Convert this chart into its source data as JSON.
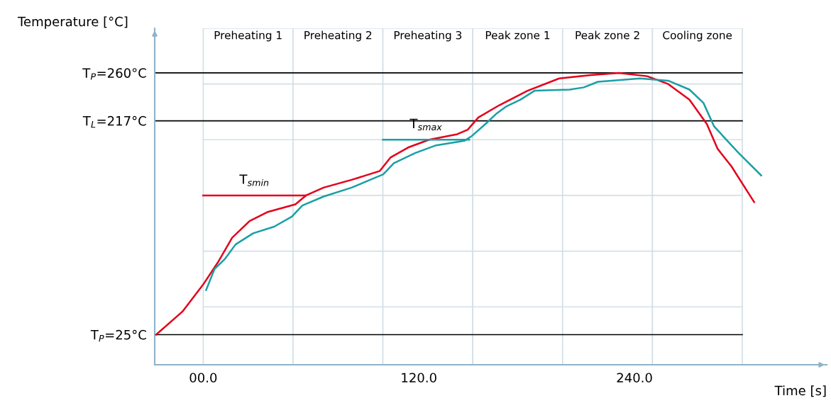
{
  "chart_data": {
    "type": "line",
    "xlabel": "Time [s]",
    "ylabel": "Temperature [°C]",
    "xlim": [
      -27,
      347
    ],
    "ylim": [
      -2,
      300
    ],
    "xticks": [
      {
        "value": 0,
        "label": "00.0"
      },
      {
        "value": 120,
        "label": "120.0"
      },
      {
        "value": 240,
        "label": "240.0"
      }
    ],
    "yticks": [
      {
        "value": 25,
        "label": "T$_{P}$=25°C"
      },
      {
        "value": 217,
        "label": "T$_{L}$=217°C"
      },
      {
        "value": 260,
        "label": "T$_{P}$=260°C"
      }
    ],
    "grid": false,
    "legend": false,
    "series": [
      {
        "color": "#e3001b",
        "x": [
          -26.2,
          -11.4,
          0.4,
          8.2,
          16.1,
          25.8,
          35.6,
          51.3,
          57.2,
          67.0,
          82.6,
          98.3,
          104.2,
          114.0,
          125.7,
          141.4,
          147.2,
          153.1,
          164.8,
          180.5,
          198.1,
          215.7,
          231.4,
          247.1,
          258.8,
          270.6,
          280.3,
          286.2,
          294.0,
          306.6
        ],
        "values": [
          25,
          46,
          71,
          90,
          112,
          127,
          135,
          142,
          150,
          157,
          164,
          172,
          184,
          193,
          200,
          205,
          209,
          220,
          231,
          244,
          255,
          258,
          260,
          257,
          250,
          236,
          214,
          192,
          176,
          144
        ]
      },
      {
        "color": "#1a9fa5",
        "x": [
          1.6,
          6.3,
          12.1,
          18.0,
          27.8,
          39.5,
          49.3,
          55.2,
          67.0,
          82.6,
          100.2,
          106.1,
          117.9,
          129.6,
          145.3,
          149.2,
          157.0,
          162.9,
          168.8,
          176.6,
          184.4,
          204.0,
          211.8,
          219.6,
          243.1,
          258.8,
          270.6,
          278.4,
          284.3,
          298.0,
          310.5
        ],
        "values": [
          65,
          84,
          93,
          106,
          116,
          122,
          131,
          141,
          149,
          157,
          169,
          179,
          188,
          195,
          199,
          203,
          214,
          223,
          230,
          236,
          244,
          245,
          247,
          252,
          255,
          253,
          245,
          233,
          212,
          188,
          168
        ]
      },
      {
        "name": "T$_{smin}$",
        "color": "#e3001b",
        "x": [
          0,
          57
        ],
        "values": [
          150,
          150
        ]
      },
      {
        "name": "T$_{smax}$",
        "color": "#1a9fa5",
        "x": [
          100,
          148
        ],
        "values": [
          200,
          200
        ]
      }
    ],
    "ref_lines": [
      {
        "axis": "y",
        "value": 260,
        "color": "#000000"
      },
      {
        "axis": "y",
        "value": 217,
        "color": "#000000"
      },
      {
        "axis": "y",
        "value": 25,
        "color": "#000000"
      },
      {
        "axis": "y",
        "value": 250,
        "color": "#d3dfe6"
      },
      {
        "axis": "y",
        "value": 200,
        "color": "#d3dfe6"
      },
      {
        "axis": "y",
        "value": 150,
        "color": "#d3dfe6"
      },
      {
        "axis": "y",
        "value": 100,
        "color": "#d3dfe6"
      },
      {
        "axis": "y",
        "value": 50,
        "color": "#d3dfe6"
      }
    ],
    "bands": [
      {
        "axis": "x",
        "from": 0,
        "to": 50,
        "label": "Preheating 1",
        "color": "#ffffff"
      },
      {
        "axis": "x",
        "from": 50,
        "to": 100,
        "label": "Preheating 2",
        "color": "#ffffff"
      },
      {
        "axis": "x",
        "from": 100,
        "to": 150,
        "label": "Preheating 3",
        "color": "#ffffff"
      },
      {
        "axis": "x",
        "from": 150,
        "to": 200,
        "label": "Peak zone 1",
        "color": "#ffffff"
      },
      {
        "axis": "x",
        "from": 200,
        "to": 250,
        "label": "Peak zone 2",
        "color": "#ffffff"
      },
      {
        "axis": "x",
        "from": 250,
        "to": 300,
        "label": "Cooling zone",
        "color": "#ffffff"
      }
    ]
  }
}
